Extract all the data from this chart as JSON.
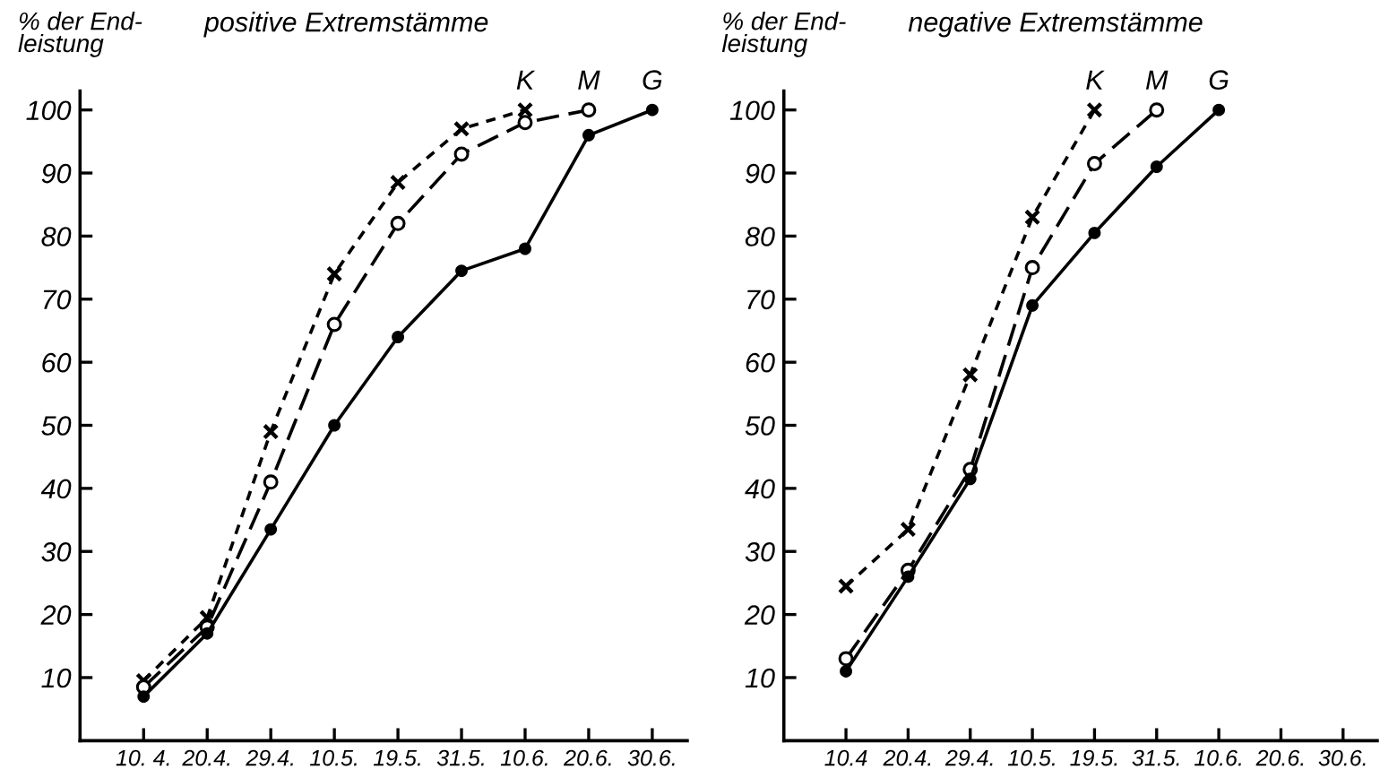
{
  "chart_data": [
    {
      "type": "line",
      "title": "positive Extremstämme",
      "ylabel": "% der End-\nleistung",
      "categories": [
        "10. 4.",
        "20.4.",
        "29.4.",
        "10.5.",
        "19.5.",
        "31.5.",
        "10.6.",
        "20.6.",
        "30.6."
      ],
      "ylim": [
        0,
        103
      ],
      "yticks": [
        10,
        20,
        30,
        40,
        50,
        60,
        70,
        80,
        90,
        100
      ],
      "grid": false,
      "legend": false,
      "series": [
        {
          "name": "K",
          "color": "#000000",
          "marker": "cross",
          "line_style": "dashed",
          "values": [
            9.5,
            19.5,
            49,
            74,
            88.5,
            97,
            100,
            null,
            null
          ]
        },
        {
          "name": "M",
          "color": "#000000",
          "marker": "circle",
          "line_style": "longdash",
          "values": [
            8.5,
            18,
            41,
            66,
            82,
            93,
            98,
            100,
            null
          ]
        },
        {
          "name": "G",
          "color": "#000000",
          "marker": "dot",
          "line_style": "solid",
          "values": [
            7,
            17,
            33.5,
            50,
            64,
            74.5,
            78,
            96,
            100
          ]
        }
      ]
    },
    {
      "type": "line",
      "title": "negative Extremstämme",
      "ylabel": "% der End-\nleistung",
      "categories": [
        "10.4",
        "20.4.",
        "29.4.",
        "10.5.",
        "19.5.",
        "31.5.",
        "10.6.",
        "20.6.",
        "30.6."
      ],
      "ylim": [
        0,
        103
      ],
      "yticks": [
        10,
        20,
        30,
        40,
        50,
        60,
        70,
        80,
        90,
        100
      ],
      "grid": false,
      "legend": false,
      "series": [
        {
          "name": "K",
          "color": "#000000",
          "marker": "cross",
          "line_style": "dashed",
          "values": [
            24.5,
            33.5,
            58,
            83,
            100,
            null,
            null,
            null,
            null
          ]
        },
        {
          "name": "M",
          "color": "#000000",
          "marker": "circle",
          "line_style": "longdash",
          "values": [
            13,
            27,
            43,
            75,
            91.5,
            100,
            null,
            null,
            null
          ]
        },
        {
          "name": "G",
          "color": "#000000",
          "marker": "dot",
          "line_style": "solid",
          "values": [
            11,
            26,
            41.5,
            69,
            80.5,
            91,
            100,
            null,
            null
          ]
        }
      ]
    }
  ]
}
